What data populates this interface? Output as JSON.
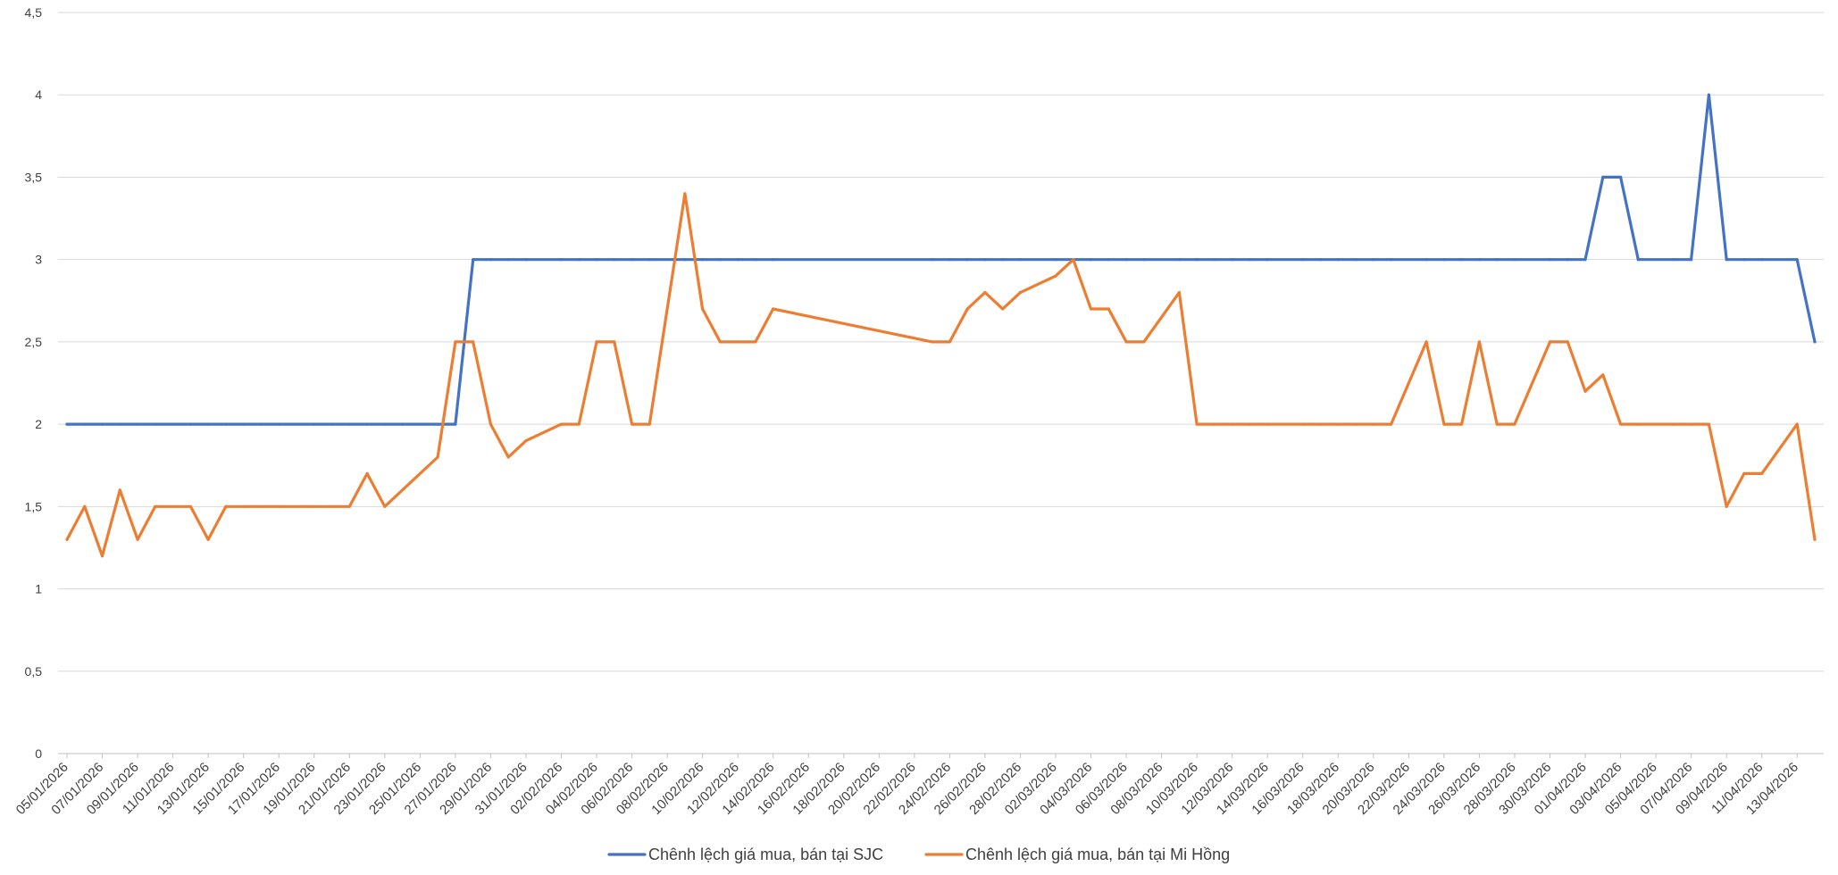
{
  "chart_data": {
    "type": "line",
    "ylim": [
      0,
      4.5
    ],
    "y_ticks": [
      0,
      0.5,
      1,
      1.5,
      2,
      2.5,
      3,
      3.5,
      4,
      4.5
    ],
    "y_tick_labels": [
      "0",
      "0,5",
      "1",
      "1,5",
      "2",
      "2,5",
      "3",
      "3,5",
      "4",
      "4,5"
    ],
    "grid": "horizontal",
    "legend_position": "bottom",
    "x_tick_labels": [
      "05/01/2026",
      "07/01/2026",
      "09/01/2026",
      "11/01/2026",
      "13/01/2026",
      "15/01/2026",
      "17/01/2026",
      "19/01/2026",
      "21/01/2026",
      "23/01/2026",
      "25/01/2026",
      "27/01/2026",
      "29/01/2026",
      "31/01/2026",
      "02/02/2026",
      "04/02/2026",
      "06/02/2026",
      "08/02/2026",
      "10/02/2026",
      "12/02/2026",
      "14/02/2026",
      "16/02/2026",
      "18/02/2026",
      "20/02/2026",
      "22/02/2026",
      "24/02/2026",
      "26/02/2026",
      "28/02/2026",
      "02/03/2026",
      "04/03/2026",
      "06/03/2026",
      "08/03/2026",
      "10/03/2026",
      "12/03/2026",
      "14/03/2026",
      "16/03/2026",
      "18/03/2026",
      "20/03/2026",
      "22/03/2026",
      "24/03/2026",
      "26/03/2026",
      "28/03/2026",
      "30/03/2026",
      "01/04/2026",
      "03/04/2026",
      "05/04/2026",
      "07/04/2026",
      "09/04/2026",
      "11/04/2026",
      "13/04/2026"
    ],
    "series": [
      {
        "name": "Chênh lệch giá mua, bán tại SJC",
        "color": "#4472C4",
        "points": [
          [
            "05/01/2026",
            2
          ],
          [
            "06/01/2026",
            2
          ],
          [
            "07/01/2026",
            2
          ],
          [
            "08/01/2026",
            2
          ],
          [
            "09/01/2026",
            2
          ],
          [
            "10/01/2026",
            2
          ],
          [
            "12/01/2026",
            2
          ],
          [
            "13/01/2026",
            2
          ],
          [
            "14/01/2026",
            2
          ],
          [
            "15/01/2026",
            2
          ],
          [
            "16/01/2026",
            2
          ],
          [
            "17/01/2026",
            2
          ],
          [
            "19/01/2026",
            2
          ],
          [
            "20/01/2026",
            2
          ],
          [
            "21/01/2026",
            2
          ],
          [
            "22/01/2026",
            2
          ],
          [
            "23/01/2026",
            2
          ],
          [
            "24/01/2026",
            2
          ],
          [
            "26/01/2026",
            2
          ],
          [
            "27/01/2026",
            2
          ],
          [
            "28/01/2026",
            3
          ],
          [
            "29/01/2026",
            3
          ],
          [
            "30/01/2026",
            3
          ],
          [
            "31/01/2026",
            3
          ],
          [
            "02/02/2026",
            3
          ],
          [
            "03/02/2026",
            3
          ],
          [
            "04/02/2026",
            3
          ],
          [
            "05/02/2026",
            3
          ],
          [
            "06/02/2026",
            3
          ],
          [
            "07/02/2026",
            3
          ],
          [
            "09/02/2026",
            3
          ],
          [
            "10/02/2026",
            3
          ],
          [
            "11/02/2026",
            3
          ],
          [
            "12/02/2026",
            3
          ],
          [
            "13/02/2026",
            3
          ],
          [
            "14/02/2026",
            3
          ],
          [
            "23/02/2026",
            3
          ],
          [
            "24/02/2026",
            3
          ],
          [
            "25/02/2026",
            3
          ],
          [
            "26/02/2026",
            3
          ],
          [
            "27/02/2026",
            3
          ],
          [
            "28/02/2026",
            3
          ],
          [
            "02/03/2026",
            3
          ],
          [
            "03/03/2026",
            3
          ],
          [
            "04/03/2026",
            3
          ],
          [
            "05/03/2026",
            3
          ],
          [
            "06/03/2026",
            3
          ],
          [
            "07/03/2026",
            3
          ],
          [
            "09/03/2026",
            3
          ],
          [
            "10/03/2026",
            3
          ],
          [
            "11/03/2026",
            3
          ],
          [
            "12/03/2026",
            3
          ],
          [
            "13/03/2026",
            3
          ],
          [
            "14/03/2026",
            3
          ],
          [
            "16/03/2026",
            3
          ],
          [
            "17/03/2026",
            3
          ],
          [
            "18/03/2026",
            3
          ],
          [
            "19/03/2026",
            3
          ],
          [
            "20/03/2026",
            3
          ],
          [
            "21/03/2026",
            3
          ],
          [
            "23/03/2026",
            3
          ],
          [
            "24/03/2026",
            3
          ],
          [
            "25/03/2026",
            3
          ],
          [
            "26/03/2026",
            3
          ],
          [
            "27/03/2026",
            3
          ],
          [
            "28/03/2026",
            3
          ],
          [
            "30/03/2026",
            3
          ],
          [
            "31/03/2026",
            3
          ],
          [
            "01/04/2026",
            3
          ],
          [
            "02/04/2026",
            3.5
          ],
          [
            "03/04/2026",
            3.5
          ],
          [
            "04/04/2026",
            3
          ],
          [
            "06/04/2026",
            3
          ],
          [
            "07/04/2026",
            3
          ],
          [
            "08/04/2026",
            4
          ],
          [
            "09/04/2026",
            3
          ],
          [
            "10/04/2026",
            3
          ],
          [
            "11/04/2026",
            3
          ],
          [
            "13/04/2026",
            3
          ],
          [
            "14/04/2026",
            2.5
          ]
        ]
      },
      {
        "name": "Chênh lệch giá mua, bán tại Mi Hồng",
        "color": "#ED7D31",
        "points": [
          [
            "05/01/2026",
            1.3
          ],
          [
            "06/01/2026",
            1.5
          ],
          [
            "07/01/2026",
            1.2
          ],
          [
            "08/01/2026",
            1.6
          ],
          [
            "09/01/2026",
            1.3
          ],
          [
            "10/01/2026",
            1.5
          ],
          [
            "12/01/2026",
            1.5
          ],
          [
            "13/01/2026",
            1.3
          ],
          [
            "14/01/2026",
            1.5
          ],
          [
            "15/01/2026",
            1.5
          ],
          [
            "16/01/2026",
            1.5
          ],
          [
            "17/01/2026",
            1.5
          ],
          [
            "19/01/2026",
            1.5
          ],
          [
            "20/01/2026",
            1.5
          ],
          [
            "21/01/2026",
            1.5
          ],
          [
            "22/01/2026",
            1.7
          ],
          [
            "23/01/2026",
            1.5
          ],
          [
            "26/01/2026",
            1.8
          ],
          [
            "27/01/2026",
            2.5
          ],
          [
            "28/01/2026",
            2.5
          ],
          [
            "29/01/2026",
            2
          ],
          [
            "30/01/2026",
            1.8
          ],
          [
            "31/01/2026",
            1.9
          ],
          [
            "02/02/2026",
            2
          ],
          [
            "03/02/2026",
            2
          ],
          [
            "04/02/2026",
            2.5
          ],
          [
            "05/02/2026",
            2.5
          ],
          [
            "06/02/2026",
            2
          ],
          [
            "07/02/2026",
            2
          ],
          [
            "09/02/2026",
            3.4
          ],
          [
            "10/02/2026",
            2.7
          ],
          [
            "11/02/2026",
            2.5
          ],
          [
            "12/02/2026",
            2.5
          ],
          [
            "13/02/2026",
            2.5
          ],
          [
            "14/02/2026",
            2.7
          ],
          [
            "23/02/2026",
            2.5
          ],
          [
            "24/02/2026",
            2.5
          ],
          [
            "25/02/2026",
            2.7
          ],
          [
            "26/02/2026",
            2.8
          ],
          [
            "27/02/2026",
            2.7
          ],
          [
            "28/02/2026",
            2.8
          ],
          [
            "02/03/2026",
            2.9
          ],
          [
            "03/03/2026",
            3
          ],
          [
            "04/03/2026",
            2.7
          ],
          [
            "05/03/2026",
            2.7
          ],
          [
            "06/03/2026",
            2.5
          ],
          [
            "07/03/2026",
            2.5
          ],
          [
            "09/03/2026",
            2.8
          ],
          [
            "10/03/2026",
            2
          ],
          [
            "11/03/2026",
            2
          ],
          [
            "12/03/2026",
            2
          ],
          [
            "13/03/2026",
            2
          ],
          [
            "14/03/2026",
            2
          ],
          [
            "16/03/2026",
            2
          ],
          [
            "17/03/2026",
            2
          ],
          [
            "18/03/2026",
            2
          ],
          [
            "19/03/2026",
            2
          ],
          [
            "20/03/2026",
            2
          ],
          [
            "21/03/2026",
            2
          ],
          [
            "23/03/2026",
            2.5
          ],
          [
            "24/03/2026",
            2
          ],
          [
            "25/03/2026",
            2
          ],
          [
            "26/03/2026",
            2.5
          ],
          [
            "27/03/2026",
            2
          ],
          [
            "28/03/2026",
            2
          ],
          [
            "30/03/2026",
            2.5
          ],
          [
            "31/03/2026",
            2.5
          ],
          [
            "01/04/2026",
            2.2
          ],
          [
            "02/04/2026",
            2.3
          ],
          [
            "03/04/2026",
            2
          ],
          [
            "04/04/2026",
            2
          ],
          [
            "06/04/2026",
            2
          ],
          [
            "07/04/2026",
            2
          ],
          [
            "08/04/2026",
            2
          ],
          [
            "09/04/2026",
            1.5
          ],
          [
            "10/04/2026",
            1.7
          ],
          [
            "11/04/2026",
            1.7
          ],
          [
            "13/04/2026",
            2
          ],
          [
            "14/04/2026",
            1.3
          ]
        ]
      }
    ]
  }
}
